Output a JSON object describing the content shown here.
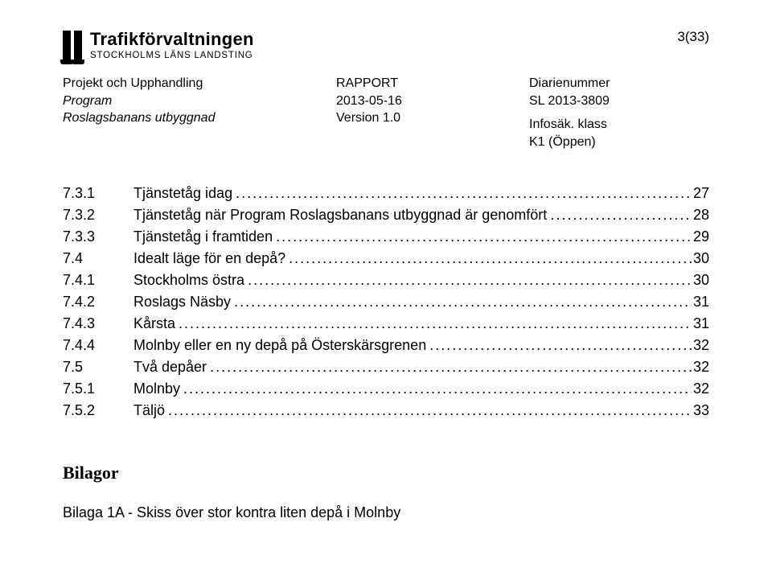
{
  "page_number": "3(33)",
  "logo": {
    "line1": "Trafikförvaltningen",
    "line2": "STOCKHOLMS LÄNS LANDSTING"
  },
  "header": {
    "left": {
      "l1": "Projekt och Upphandling",
      "l2": "Program",
      "l3": "Roslagsbanans utbyggnad"
    },
    "mid": {
      "l1": "RAPPORT",
      "l2": "2013-05-16",
      "l3": "Version 1.0"
    },
    "right": {
      "l1": "Diarienummer",
      "l2": "SL 2013-3809",
      "l3": "Infosäk. klass",
      "l4": "K1 (Öppen)"
    }
  },
  "toc": [
    {
      "num": "7.3.1",
      "title": "Tjänstetåg idag",
      "page": "27"
    },
    {
      "num": "7.3.2",
      "title": "Tjänstetåg när Program Roslagsbanans utbyggnad är genomfört",
      "page": " 28"
    },
    {
      "num": "7.3.3",
      "title": "Tjänstetåg i framtiden",
      "page": "29"
    },
    {
      "num": "7.4",
      "title": "Idealt läge för en depå?",
      "page": " 30"
    },
    {
      "num": "7.4.1",
      "title": "Stockholms östra",
      "page": " 30"
    },
    {
      "num": "7.4.2",
      "title": "Roslags Näsby",
      "page": " 31"
    },
    {
      "num": "7.4.3",
      "title": "Kårsta",
      "page": " 31"
    },
    {
      "num": "7.4.4",
      "title": "Molnby eller en ny depå på Österskärsgrenen ",
      "page": "32"
    },
    {
      "num": "7.5",
      "title": "Två depåer",
      "page": "32"
    },
    {
      "num": "7.5.1",
      "title": "Molnby",
      "page": "32"
    },
    {
      "num": "7.5.2",
      "title": "Täljö",
      "page": "33"
    }
  ],
  "appendix": {
    "heading": "Bilagor",
    "line": "Bilaga 1A - Skiss över stor kontra liten depå i Molnby"
  }
}
